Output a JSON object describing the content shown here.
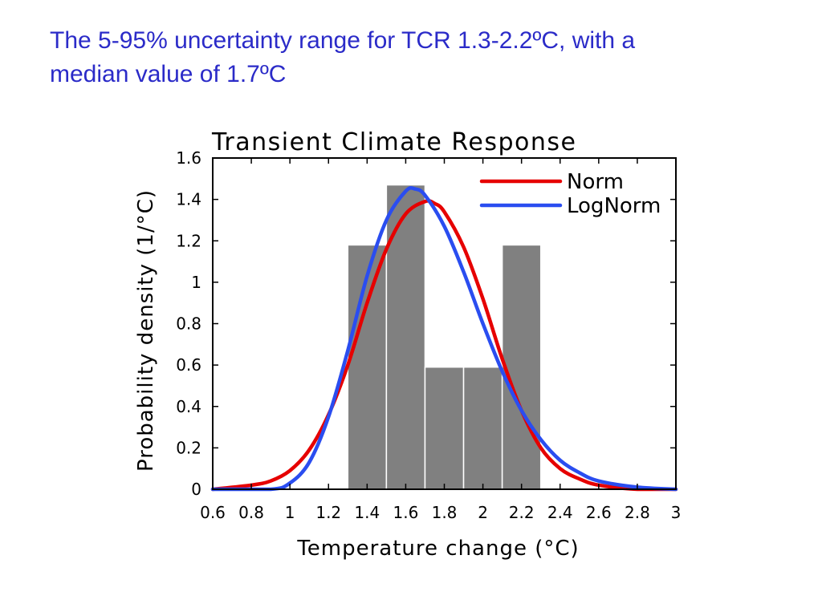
{
  "slide": {
    "title_line1": "The 5-95% uncertainty range for TCR 1.3-2.2ºC, with a",
    "title_line2": "median value of 1.7ºC"
  },
  "chart_data": {
    "type": "bar",
    "title": "Transient Climate Response",
    "xlabel": "Temperature change (°C)",
    "ylabel": "Probability density (1/°C)",
    "xlim": [
      0.6,
      3
    ],
    "ylim": [
      0,
      1.6
    ],
    "grid": false,
    "legend_position": "top-right",
    "x_ticks": [
      "0.6",
      "0.8",
      "1",
      "1.2",
      "1.4",
      "1.6",
      "1.8",
      "2",
      "2.2",
      "2.4",
      "2.6",
      "2.8",
      "3"
    ],
    "y_ticks": [
      "0",
      "0.2",
      "0.4",
      "0.6",
      "0.8",
      "1",
      "1.2",
      "1.4",
      "1.6"
    ],
    "histogram": {
      "color": "#808080",
      "bins": [
        {
          "x0": 1.3,
          "x1": 1.5,
          "value": 1.18
        },
        {
          "x0": 1.5,
          "x1": 1.7,
          "value": 1.47
        },
        {
          "x0": 1.7,
          "x1": 1.9,
          "value": 0.59
        },
        {
          "x0": 1.9,
          "x1": 2.1,
          "value": 0.59
        },
        {
          "x0": 2.1,
          "x1": 2.3,
          "value": 1.18
        }
      ]
    },
    "series": [
      {
        "name": "Norm",
        "color": "#e60000",
        "x": [
          0.6,
          0.8,
          0.9,
          1.0,
          1.1,
          1.2,
          1.3,
          1.4,
          1.5,
          1.6,
          1.7,
          1.75,
          1.8,
          1.9,
          2.0,
          2.1,
          2.2,
          2.3,
          2.4,
          2.5,
          2.6,
          2.8,
          3.0
        ],
        "y": [
          0.0,
          0.02,
          0.04,
          0.09,
          0.19,
          0.36,
          0.6,
          0.9,
          1.16,
          1.33,
          1.39,
          1.38,
          1.34,
          1.17,
          0.92,
          0.63,
          0.38,
          0.2,
          0.1,
          0.05,
          0.02,
          0.0,
          0.0
        ]
      },
      {
        "name": "LogNorm",
        "color": "#2a4df0",
        "x": [
          0.6,
          0.9,
          1.0,
          1.1,
          1.2,
          1.3,
          1.4,
          1.5,
          1.6,
          1.65,
          1.7,
          1.8,
          1.9,
          2.0,
          2.1,
          2.2,
          2.3,
          2.4,
          2.5,
          2.6,
          2.8,
          3.0
        ],
        "y": [
          0.0,
          0.0,
          0.03,
          0.13,
          0.35,
          0.67,
          1.03,
          1.3,
          1.44,
          1.45,
          1.42,
          1.27,
          1.05,
          0.8,
          0.57,
          0.38,
          0.24,
          0.14,
          0.08,
          0.04,
          0.01,
          0.0
        ]
      }
    ]
  }
}
